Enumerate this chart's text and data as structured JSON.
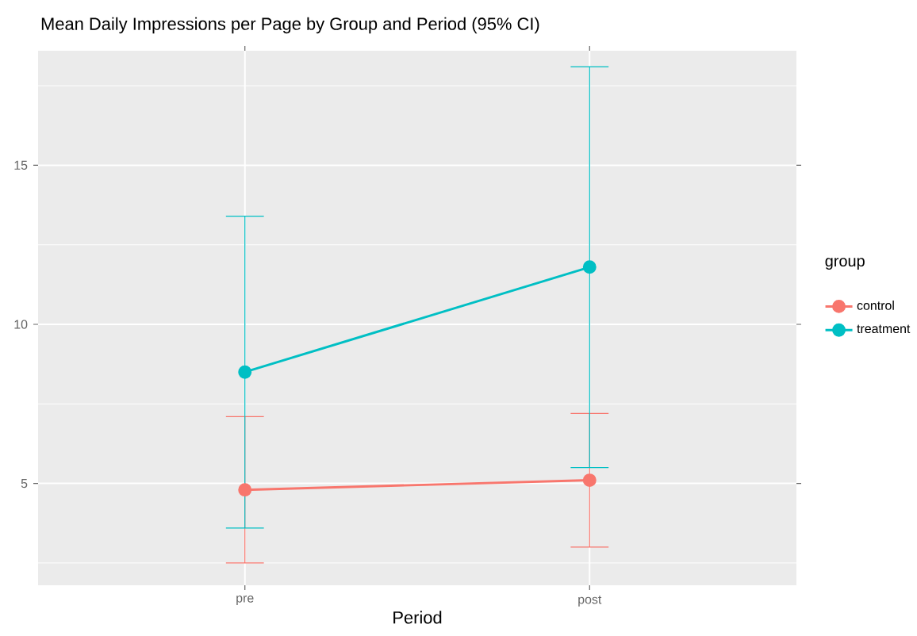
{
  "chart_data": {
    "type": "line",
    "title": "Mean Daily Impressions per Page by Group and Period (95% CI)",
    "xlabel": "Period",
    "legend_title": "group",
    "categories": [
      "pre",
      "post"
    ],
    "series": [
      {
        "name": "control",
        "color": "#f8766d",
        "values": [
          4.8,
          5.1
        ],
        "errors": [
          [
            2.5,
            7.1
          ],
          [
            3.0,
            7.2
          ]
        ]
      },
      {
        "name": "treatment",
        "color": "#00bfc4",
        "values": [
          8.5,
          11.8
        ],
        "errors": [
          [
            3.6,
            13.4
          ],
          [
            5.5,
            18.1
          ]
        ]
      }
    ],
    "ylim": [
      1.8,
      18.6
    ],
    "yticks": [
      5,
      10,
      15
    ],
    "grid": true,
    "legend": "right",
    "marker": "circle",
    "line_style": "solid"
  }
}
